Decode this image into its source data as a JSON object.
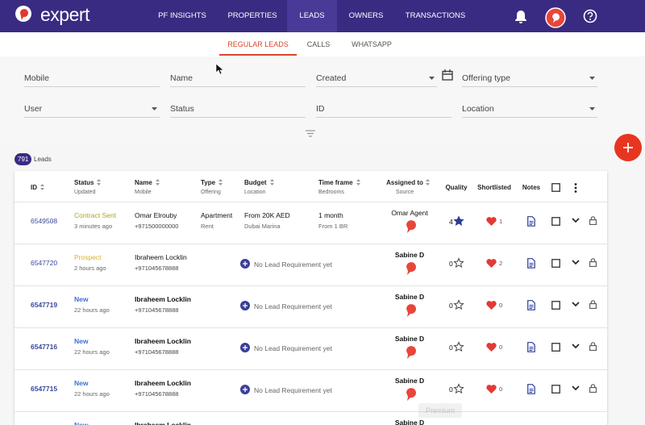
{
  "nav": {
    "logo": "expert",
    "items": [
      "PF INSIGHTS",
      "PROPERTIES",
      "LEADS",
      "OWNERS",
      "TRANSACTIONS"
    ],
    "active": 2
  },
  "subnav": {
    "items": [
      "REGULAR LEADS",
      "CALLS",
      "WHATSAPP"
    ],
    "active": 0
  },
  "filters": [
    "Mobile",
    "Name",
    "Created",
    "Offering type",
    "User",
    "Status",
    "ID",
    "Location"
  ],
  "count": {
    "value": "791",
    "label": "Leads"
  },
  "table": {
    "headers": [
      {
        "title": "ID"
      },
      {
        "title": "Status",
        "sub": "Updated"
      },
      {
        "title": "Name",
        "sub": "Mobile"
      },
      {
        "title": "Type",
        "sub": "Offering"
      },
      {
        "title": "Budget",
        "sub": "Location"
      },
      {
        "title": "Time frame",
        "sub": "Bedrooms"
      },
      {
        "title": "Assigned to",
        "sub": "Source"
      },
      {
        "title": "Quality"
      },
      {
        "title": "Shortlisted"
      },
      {
        "title": "Notes"
      }
    ],
    "rows": [
      {
        "id": "6549508",
        "status": "Contract Sent",
        "status_color": "#a4a81c",
        "updated": "3 minutes ago",
        "name": "Omar Elrouby",
        "mobile": "+971500000000",
        "type": "Apartment",
        "offering": "Rent",
        "budget": "From 20K AED",
        "location": "Dubai Marina",
        "timeframe": "1 month",
        "bedrooms": "From 1 BR",
        "assigned": "Omar Agent",
        "quality": 4,
        "shortlisted": 1
      },
      {
        "id": "6547720",
        "status": "Prospect",
        "status_color": "#e0b31c",
        "updated": "2 hours ago",
        "name": "Ibraheem Locklin",
        "mobile": "+971045678888",
        "requirement": "No Lead Requirement yet",
        "assigned": "Sabine D",
        "quality": 0,
        "shortlisted": 2
      },
      {
        "id": "6547719",
        "status": "New",
        "status_color": "#3f6fd8",
        "updated": "22 hours ago",
        "name": "Ibraheem Locklin",
        "mobile": "+971045678888",
        "requirement": "No Lead Requirement yet",
        "assigned": "Sabine D",
        "quality": 0,
        "shortlisted": 0
      },
      {
        "id": "6547716",
        "status": "New",
        "status_color": "#3f6fd8",
        "updated": "22 hours ago",
        "name": "Ibraheem Locklin",
        "mobile": "+971045678888",
        "requirement": "No Lead Requirement yet",
        "assigned": "Sabine D",
        "quality": 0,
        "shortlisted": 0
      },
      {
        "id": "6547715",
        "status": "New",
        "status_color": "#3f6fd8",
        "updated": "22 hours ago",
        "name": "Ibraheem Locklin",
        "mobile": "+971045678888",
        "requirement": "No Lead Requirement yet",
        "assigned": "Sabine D",
        "quality": 0,
        "shortlisted": 0
      },
      {
        "status": "New",
        "status_color": "#3f6fd8",
        "name": "Ibraheem Locklin",
        "assigned": "Sabine D"
      }
    ]
  },
  "tooltip": "Premium"
}
